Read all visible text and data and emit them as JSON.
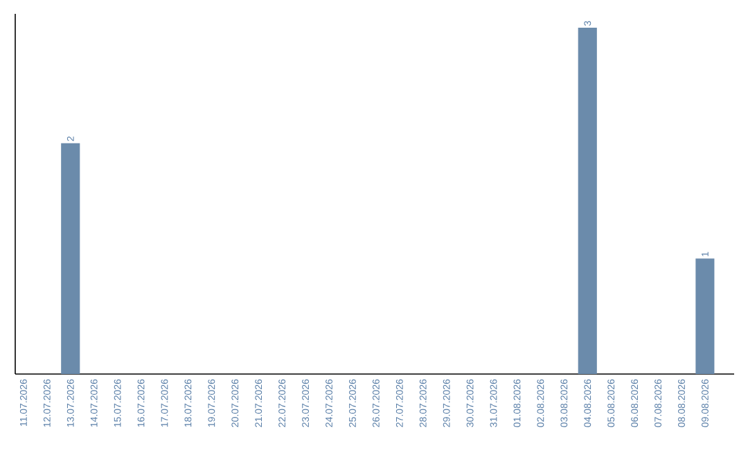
{
  "chart_data": {
    "type": "bar",
    "categories": [
      "11.07.2026",
      "12.07.2026",
      "13.07.2026",
      "14.07.2026",
      "15.07.2026",
      "16.07.2026",
      "17.07.2026",
      "18.07.2026",
      "19.07.2026",
      "20.07.2026",
      "21.07.2026",
      "22.07.2026",
      "23.07.2026",
      "24.07.2026",
      "25.07.2026",
      "26.07.2026",
      "27.07.2026",
      "28.07.2026",
      "29.07.2026",
      "30.07.2026",
      "31.07.2026",
      "01.08.2026",
      "02.08.2026",
      "03.08.2026",
      "04.08.2026",
      "05.08.2026",
      "06.08.2026",
      "07.08.2026",
      "08.08.2026",
      "09.08.2026"
    ],
    "values": [
      0,
      0,
      2,
      0,
      0,
      0,
      0,
      0,
      0,
      0,
      0,
      0,
      0,
      0,
      0,
      0,
      0,
      0,
      0,
      0,
      0,
      0,
      0,
      0,
      3,
      0,
      0,
      0,
      0,
      1
    ],
    "value_labels": [
      null,
      null,
      "2",
      null,
      null,
      null,
      null,
      null,
      null,
      null,
      null,
      null,
      null,
      null,
      null,
      null,
      null,
      null,
      null,
      null,
      null,
      null,
      null,
      null,
      "3",
      null,
      null,
      null,
      null,
      "1"
    ],
    "color": "#6b8bab"
  }
}
